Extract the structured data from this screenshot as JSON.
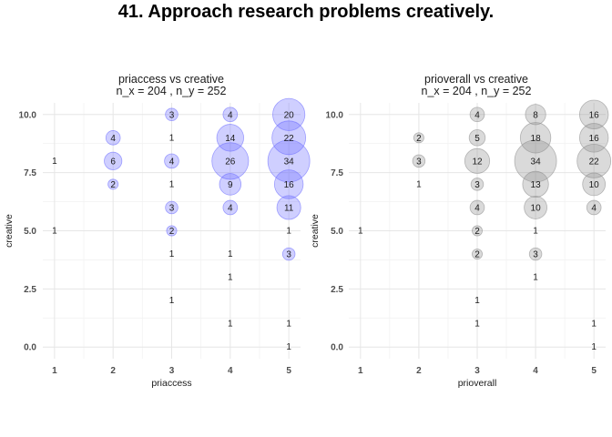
{
  "title": "41. Approach research problems creatively.",
  "chart_data": [
    {
      "type": "scatter",
      "title": "priaccess vs creative",
      "subtitle": "n_x = 204 , n_y = 252",
      "xlabel": "priaccess",
      "ylabel": "creative",
      "xlim": [
        0.8,
        5.2
      ],
      "ylim": [
        -0.5,
        10.5
      ],
      "x_ticks": [
        "1",
        "2",
        "3",
        "4",
        "5"
      ],
      "y_ticks": [
        "0.0",
        "2.5",
        "5.0",
        "7.5",
        "10.0"
      ],
      "grid": true,
      "bubble_color": "#6b6bff",
      "points": [
        {
          "x": 1,
          "y": 8,
          "n": 1
        },
        {
          "x": 1,
          "y": 5,
          "n": 1
        },
        {
          "x": 2,
          "y": 9,
          "n": 4
        },
        {
          "x": 2,
          "y": 8,
          "n": 6
        },
        {
          "x": 2,
          "y": 7,
          "n": 2
        },
        {
          "x": 3,
          "y": 10,
          "n": 3
        },
        {
          "x": 3,
          "y": 9,
          "n": 1
        },
        {
          "x": 3,
          "y": 8,
          "n": 4
        },
        {
          "x": 3,
          "y": 7,
          "n": 1
        },
        {
          "x": 3,
          "y": 6,
          "n": 3
        },
        {
          "x": 3,
          "y": 5,
          "n": 2
        },
        {
          "x": 3,
          "y": 4,
          "n": 1
        },
        {
          "x": 3,
          "y": 2,
          "n": 1
        },
        {
          "x": 4,
          "y": 10,
          "n": 4
        },
        {
          "x": 4,
          "y": 9,
          "n": 14
        },
        {
          "x": 4,
          "y": 8,
          "n": 26
        },
        {
          "x": 4,
          "y": 7,
          "n": 9
        },
        {
          "x": 4,
          "y": 6,
          "n": 4
        },
        {
          "x": 4,
          "y": 4,
          "n": 1
        },
        {
          "x": 4,
          "y": 3,
          "n": 1
        },
        {
          "x": 4,
          "y": 1,
          "n": 1
        },
        {
          "x": 5,
          "y": 10,
          "n": 20
        },
        {
          "x": 5,
          "y": 9,
          "n": 22
        },
        {
          "x": 5,
          "y": 8,
          "n": 34
        },
        {
          "x": 5,
          "y": 7,
          "n": 16
        },
        {
          "x": 5,
          "y": 6,
          "n": 11
        },
        {
          "x": 5,
          "y": 5,
          "n": 1
        },
        {
          "x": 5,
          "y": 4,
          "n": 3
        },
        {
          "x": 5,
          "y": 1,
          "n": 1
        },
        {
          "x": 5,
          "y": 0,
          "n": 1
        }
      ]
    },
    {
      "type": "scatter",
      "title": "prioverall vs creative",
      "subtitle": "n_x = 204 , n_y = 252",
      "xlabel": "prioverall",
      "ylabel": "creative",
      "xlim": [
        0.8,
        5.2
      ],
      "ylim": [
        -0.5,
        10.5
      ],
      "x_ticks": [
        "1",
        "2",
        "3",
        "4",
        "5"
      ],
      "y_ticks": [
        "0.0",
        "2.5",
        "5.0",
        "7.5",
        "10.0"
      ],
      "grid": true,
      "bubble_color": "#8c8c8c",
      "points": [
        {
          "x": 1,
          "y": 5,
          "n": 1
        },
        {
          "x": 2,
          "y": 9,
          "n": 2
        },
        {
          "x": 2,
          "y": 8,
          "n": 3
        },
        {
          "x": 2,
          "y": 7,
          "n": 1
        },
        {
          "x": 3,
          "y": 10,
          "n": 4
        },
        {
          "x": 3,
          "y": 9,
          "n": 5
        },
        {
          "x": 3,
          "y": 8,
          "n": 12
        },
        {
          "x": 3,
          "y": 7,
          "n": 3
        },
        {
          "x": 3,
          "y": 6,
          "n": 4
        },
        {
          "x": 3,
          "y": 5,
          "n": 2
        },
        {
          "x": 3,
          "y": 4,
          "n": 2
        },
        {
          "x": 3,
          "y": 2,
          "n": 1
        },
        {
          "x": 3,
          "y": 1,
          "n": 1
        },
        {
          "x": 4,
          "y": 10,
          "n": 8
        },
        {
          "x": 4,
          "y": 9,
          "n": 18
        },
        {
          "x": 4,
          "y": 8,
          "n": 34
        },
        {
          "x": 4,
          "y": 7,
          "n": 13
        },
        {
          "x": 4,
          "y": 6,
          "n": 10
        },
        {
          "x": 4,
          "y": 5,
          "n": 1
        },
        {
          "x": 4,
          "y": 4,
          "n": 3
        },
        {
          "x": 4,
          "y": 3,
          "n": 1
        },
        {
          "x": 5,
          "y": 10,
          "n": 16
        },
        {
          "x": 5,
          "y": 9,
          "n": 16
        },
        {
          "x": 5,
          "y": 8,
          "n": 22
        },
        {
          "x": 5,
          "y": 7,
          "n": 10
        },
        {
          "x": 5,
          "y": 6,
          "n": 4
        },
        {
          "x": 5,
          "y": 1,
          "n": 1
        },
        {
          "x": 5,
          "y": 0,
          "n": 1
        }
      ]
    }
  ]
}
